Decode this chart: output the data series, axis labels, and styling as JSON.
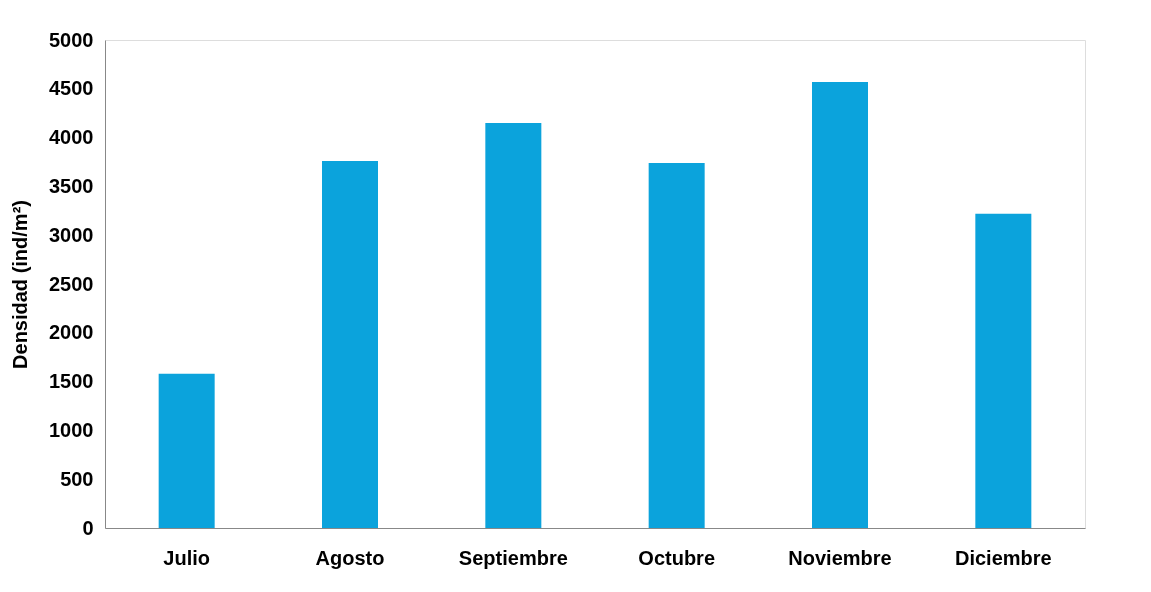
{
  "chart_data": {
    "type": "bar",
    "ylabel": "Densidad (ind/m²)",
    "categories": [
      "Julio",
      "Agosto",
      "Septiembre",
      "Octubre",
      "Noviembre",
      "Diciembre"
    ],
    "values": [
      1580,
      3760,
      4150,
      3740,
      4570,
      3220
    ],
    "color": "#0ba3dc",
    "ylim": [
      0,
      5000
    ],
    "yticks": [
      0,
      500,
      1000,
      1500,
      2000,
      2500,
      3000,
      3500,
      4000,
      4500,
      5000
    ],
    "grid": false
  }
}
